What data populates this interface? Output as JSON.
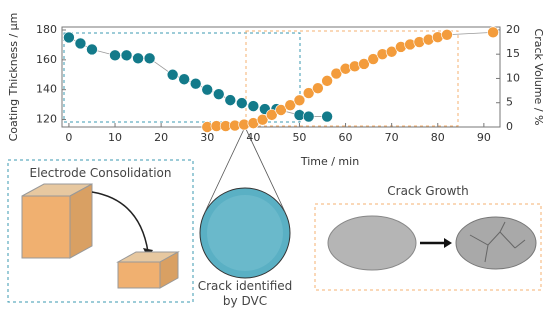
{
  "chart_data": {
    "type": "scatter",
    "xlabel": "Time / min",
    "ylabel": "Coating Thickness / µm",
    "y2label": "Crack Volume / %",
    "xlim": [
      -1.5,
      93.5
    ],
    "xticks": [
      0,
      10,
      20,
      30,
      40,
      50,
      60,
      70,
      80,
      90
    ],
    "ylim": [
      115,
      182
    ],
    "yticks": [
      120,
      140,
      160,
      180
    ],
    "y2lim": [
      0,
      20.6
    ],
    "y2ticks": [
      0,
      5,
      10,
      15,
      20
    ],
    "series": [
      {
        "color": "#137a8a",
        "axis": "y",
        "x": [
          0,
          2.5,
          5,
          10,
          12.5,
          15,
          17.5,
          22.5,
          25,
          27.5,
          30,
          32.5,
          35,
          37.5,
          40,
          42.5,
          45,
          50,
          52,
          56
        ],
        "values": [
          175,
          171,
          167,
          163,
          163,
          161,
          161,
          150,
          147,
          144,
          140,
          137,
          133,
          131,
          129,
          127,
          127,
          123,
          122,
          122
        ]
      },
      {
        "color": "#f39c3c",
        "axis": "y2",
        "x": [
          30,
          32,
          34,
          36,
          38,
          40,
          42,
          44,
          46,
          48,
          50,
          52,
          54,
          56,
          58,
          60,
          62,
          64,
          66,
          68,
          70,
          72,
          74,
          76,
          78,
          80,
          82,
          92
        ],
        "values": [
          0,
          0.2,
          0.2,
          0.3,
          0.5,
          0.8,
          1.5,
          2.5,
          3.5,
          4.5,
          5.5,
          7,
          8,
          9.5,
          11,
          12,
          12.5,
          13,
          14,
          15,
          15.5,
          16.5,
          17,
          17.5,
          18,
          18.5,
          19,
          19.5
        ]
      }
    ],
    "annotations": [
      "Electrode Consolidation",
      "Crack identified by DVC",
      "Crack Growth"
    ]
  }
}
